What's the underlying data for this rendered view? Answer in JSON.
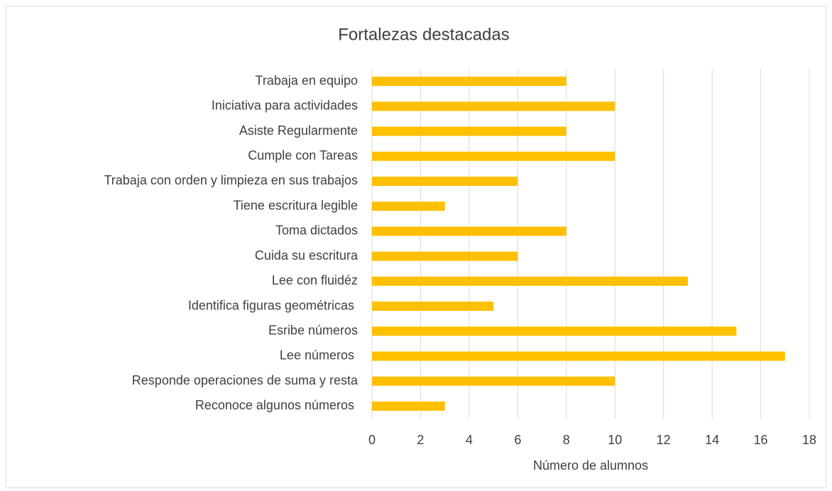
{
  "chart_data": {
    "type": "bar",
    "orientation": "horizontal",
    "title": "Fortalezas destacadas",
    "x_label": "Número de alumnos",
    "categories": [
      "Trabaja en equipo",
      "Iniciativa para actividades",
      "Asiste Regularmente",
      "Cumple con Tareas",
      "Trabaja con orden y limpieza en sus trabajos",
      "Tiene escritura legible",
      "Toma dictados",
      "Cuida su escritura",
      "Lee con fluidéz",
      "Identifica figuras geométricas ",
      "Esribe números",
      "Lee números ",
      "Responde operaciones de suma y resta",
      "Reconoce algunos números "
    ],
    "values": [
      8,
      10,
      8,
      10,
      6,
      3,
      8,
      6,
      13,
      5,
      15,
      17,
      10,
      3
    ],
    "color": "#ffc000",
    "xlim": [
      0,
      18
    ],
    "xticks": [
      0,
      2,
      4,
      6,
      8,
      10,
      12,
      14,
      16,
      18
    ],
    "grid": true
  }
}
